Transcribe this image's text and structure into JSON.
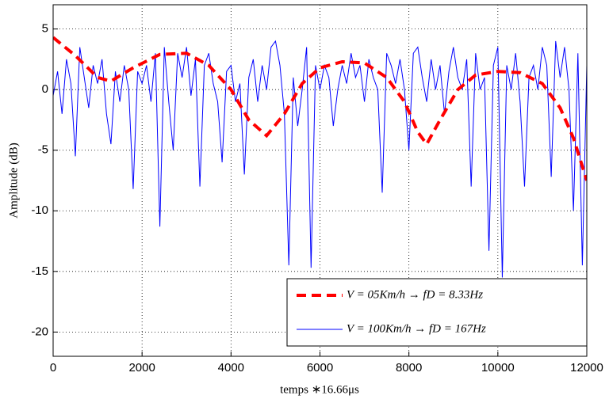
{
  "chart_data": {
    "type": "line",
    "xlabel": "temps ∗16.66μs",
    "ylabel": "Amplitude (dB)",
    "xlim": [
      0,
      12000
    ],
    "xticks": [
      0,
      2000,
      4000,
      6000,
      8000,
      10000,
      12000
    ],
    "ylim": [
      -22,
      7
    ],
    "yticks": [
      -20,
      -15,
      -10,
      -5,
      0,
      5
    ],
    "grid": true,
    "legend": "lower right",
    "series": [
      {
        "name": "V = 05Km/h → fD = 8.33Hz",
        "color": "#ff0000",
        "style": "dashed",
        "x": [
          0,
          500,
          1000,
          1300,
          1800,
          2400,
          3000,
          3500,
          4000,
          4400,
          4800,
          5200,
          5600,
          6000,
          6500,
          7000,
          7500,
          7900,
          8200,
          8400,
          8700,
          9100,
          9500,
          10000,
          10500,
          11000,
          11400,
          11700,
          12000
        ],
        "values": [
          4.3,
          2.8,
          1.0,
          0.7,
          1.8,
          2.9,
          3.0,
          2.0,
          0,
          -2.5,
          -3.8,
          -2,
          0.5,
          1.8,
          2.3,
          2.2,
          1.0,
          -1.0,
          -3.5,
          -4.5,
          -2.5,
          0,
          1.2,
          1.5,
          1.4,
          0.5,
          -1.5,
          -4.0,
          -7.5
        ]
      },
      {
        "name": "V = 100Km/h → fD = 167Hz",
        "color": "#0000ff",
        "style": "solid",
        "x": [
          0,
          100,
          200,
          300,
          400,
          500,
          600,
          700,
          800,
          900,
          1000,
          1100,
          1200,
          1300,
          1400,
          1500,
          1600,
          1700,
          1800,
          1900,
          2000,
          2100,
          2200,
          2300,
          2400,
          2500,
          2600,
          2700,
          2800,
          2900,
          3000,
          3100,
          3200,
          3300,
          3400,
          3500,
          3600,
          3700,
          3800,
          3900,
          4000,
          4100,
          4200,
          4300,
          4400,
          4500,
          4600,
          4700,
          4800,
          4900,
          5000,
          5100,
          5200,
          5300,
          5400,
          5500,
          5600,
          5700,
          5800,
          5900,
          6000,
          6100,
          6200,
          6300,
          6400,
          6500,
          6600,
          6700,
          6800,
          6900,
          7000,
          7100,
          7200,
          7300,
          7400,
          7500,
          7600,
          7700,
          7800,
          7900,
          8000,
          8100,
          8200,
          8300,
          8400,
          8500,
          8600,
          8700,
          8800,
          8900,
          9000,
          9100,
          9200,
          9300,
          9400,
          9500,
          9600,
          9700,
          9800,
          9900,
          10000,
          10100,
          10200,
          10300,
          10400,
          10500,
          10600,
          10700,
          10800,
          10900,
          11000,
          11100,
          11200,
          11300,
          11400,
          11500,
          11600,
          11700,
          11800,
          11900,
          12000
        ],
        "values": [
          -0.5,
          1.5,
          -2,
          2.5,
          0.5,
          -5.5,
          3.5,
          1,
          -1.5,
          2,
          0.5,
          2.5,
          -2,
          -4.5,
          1.5,
          -1,
          2,
          0,
          -8.2,
          1.5,
          0.5,
          2,
          -1,
          3,
          -11.3,
          3.5,
          -1,
          -5,
          3,
          1,
          3.5,
          -0.5,
          2.5,
          -8,
          2,
          3,
          0.5,
          -1,
          -6,
          1.5,
          2,
          -1,
          0.5,
          -7,
          1,
          2.5,
          -1,
          2,
          0,
          3.5,
          4,
          2,
          -2,
          -14.5,
          1,
          -3,
          0,
          3.5,
          -14.7,
          2,
          0,
          2,
          1,
          -3,
          0,
          2,
          0.5,
          3,
          1,
          2,
          -1,
          2.5,
          1,
          0,
          -8.5,
          3,
          2,
          0.5,
          2.5,
          0,
          -5,
          3,
          3.5,
          1,
          -1,
          2.5,
          0,
          2,
          -2,
          1.5,
          3.5,
          1,
          0,
          2.5,
          -8,
          3,
          0,
          1,
          -13.3,
          2,
          3.5,
          -15.5,
          2,
          0,
          3,
          -1,
          -8,
          1,
          2,
          0,
          3.5,
          2,
          -7.2,
          4,
          1,
          3.5,
          0,
          -10,
          3,
          -14.5,
          2
        ]
      }
    ]
  }
}
